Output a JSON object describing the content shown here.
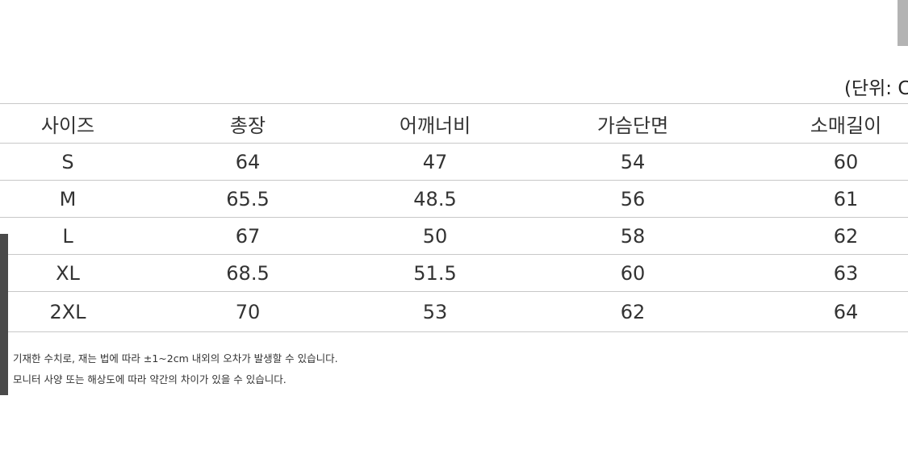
{
  "unit_label": "(단위: C",
  "table": {
    "headers": [
      "사이즈",
      "총장",
      "어깨너비",
      "가슴단면",
      "소매길이"
    ],
    "rows": [
      [
        "S",
        "64",
        "47",
        "54",
        "60"
      ],
      [
        "M",
        "65.5",
        "48.5",
        "56",
        "61"
      ],
      [
        "L",
        "67",
        "50",
        "58",
        "62"
      ],
      [
        "XL",
        "68.5",
        "51.5",
        "60",
        "63"
      ],
      [
        "2XL",
        "70",
        "53",
        "62",
        "64"
      ]
    ]
  },
  "notes": [
    "기재한 수치로, 재는 법에 따라 ±1~2cm 내외의 오차가 발생할 수 있습니다.",
    "모니터 사양 또는 해상도에 따라 약간의 차이가 있을 수 있습니다."
  ]
}
